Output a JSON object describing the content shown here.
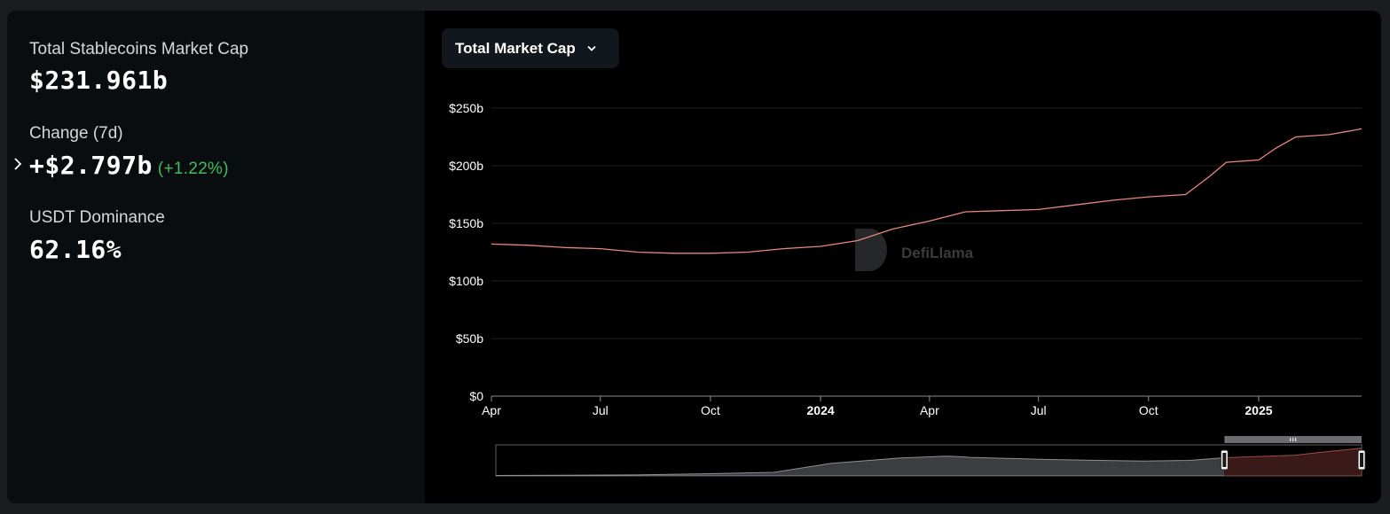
{
  "stats": {
    "market_cap_label": "Total Stablecoins Market Cap",
    "market_cap_value": "$231.961b",
    "change_label": "Change (7d)",
    "change_value": "+$2.797b",
    "change_pct": "(+1.22%)",
    "dominance_label": "USDT Dominance",
    "dominance_value": "62.16%"
  },
  "dropdown": {
    "label": "Total Market Cap",
    "icon": "chevron-down-icon"
  },
  "watermark": "DefiLlama",
  "colors": {
    "line": "#e8887c",
    "positive": "#3fbf5a",
    "navigator_selected": "#3a1a18",
    "navigator_unselected": "#3c3d40"
  },
  "chart_data": {
    "type": "line",
    "title": "",
    "xlabel": "",
    "ylabel": "",
    "ylim": [
      0,
      250
    ],
    "y_ticks": [
      "$0",
      "$50b",
      "$100b",
      "$150b",
      "$200b",
      "$250b"
    ],
    "y_tick_values": [
      0,
      50,
      100,
      150,
      200,
      250
    ],
    "x_ticks": [
      {
        "label": "Apr",
        "date": "2023-04-01",
        "bold": false
      },
      {
        "label": "Jul",
        "date": "2023-07-01",
        "bold": false
      },
      {
        "label": "Oct",
        "date": "2023-10-01",
        "bold": false
      },
      {
        "label": "2024",
        "date": "2024-01-01",
        "bold": true
      },
      {
        "label": "Apr",
        "date": "2024-04-01",
        "bold": false
      },
      {
        "label": "Jul",
        "date": "2024-07-01",
        "bold": false
      },
      {
        "label": "Oct",
        "date": "2024-10-01",
        "bold": false
      },
      {
        "label": "2025",
        "date": "2025-01-01",
        "bold": true
      }
    ],
    "grid": true,
    "series": [
      {
        "points": [
          [
            "2023-04-01",
            132
          ],
          [
            "2023-05-01",
            131
          ],
          [
            "2023-06-01",
            129
          ],
          [
            "2023-07-01",
            128
          ],
          [
            "2023-08-01",
            125
          ],
          [
            "2023-09-01",
            124
          ],
          [
            "2023-10-01",
            124
          ],
          [
            "2023-11-01",
            125
          ],
          [
            "2023-12-01",
            128
          ],
          [
            "2024-01-01",
            130
          ],
          [
            "2024-02-01",
            135
          ],
          [
            "2024-03-01",
            145
          ],
          [
            "2024-04-01",
            152
          ],
          [
            "2024-05-01",
            160
          ],
          [
            "2024-06-01",
            161
          ],
          [
            "2024-07-01",
            162
          ],
          [
            "2024-08-01",
            166
          ],
          [
            "2024-09-01",
            170
          ],
          [
            "2024-10-01",
            173
          ],
          [
            "2024-11-01",
            175
          ],
          [
            "2024-11-20",
            190
          ],
          [
            "2024-12-05",
            203
          ],
          [
            "2025-01-01",
            205
          ],
          [
            "2025-01-15",
            215
          ],
          [
            "2025-02-01",
            225
          ],
          [
            "2025-03-01",
            227
          ],
          [
            "2025-03-28",
            232
          ]
        ]
      }
    ],
    "navigator": {
      "selected_range": [
        "2024-04-01",
        "2025-03-28"
      ],
      "points": [
        [
          "2019-01-01",
          4
        ],
        [
          "2020-01-01",
          8
        ],
        [
          "2020-07-01",
          18
        ],
        [
          "2021-01-01",
          30
        ],
        [
          "2021-06-01",
          105
        ],
        [
          "2021-12-01",
          150
        ],
        [
          "2022-04-01",
          165
        ],
        [
          "2022-05-15",
          160
        ],
        [
          "2022-06-01",
          155
        ],
        [
          "2022-12-01",
          140
        ],
        [
          "2023-04-01",
          132
        ],
        [
          "2023-09-01",
          124
        ],
        [
          "2024-01-01",
          130
        ],
        [
          "2024-04-01",
          152
        ],
        [
          "2024-10-01",
          173
        ],
        [
          "2025-01-01",
          205
        ],
        [
          "2025-03-28",
          232
        ]
      ]
    }
  }
}
